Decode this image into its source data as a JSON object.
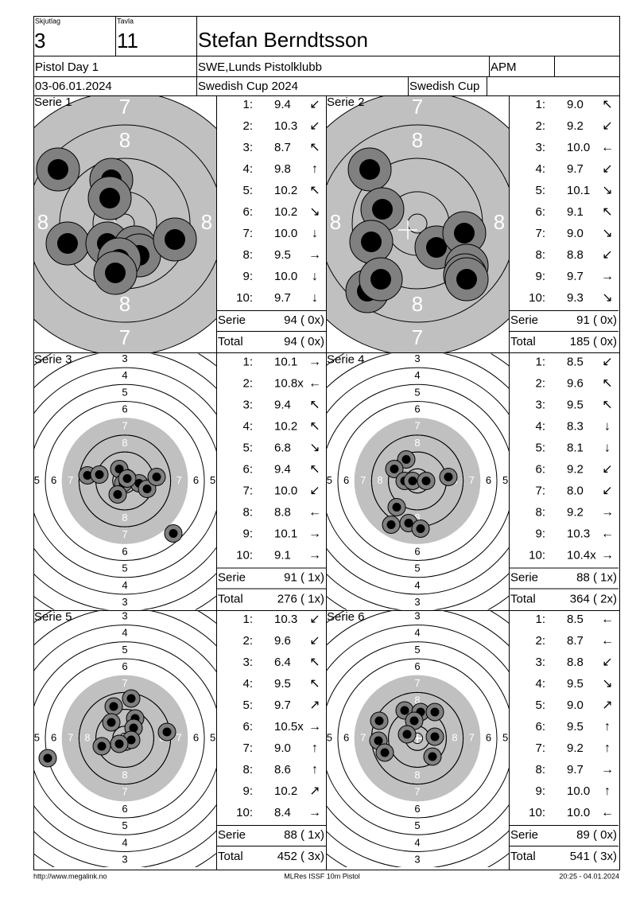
{
  "header": {
    "squad_label": "Skjutlag",
    "squad": "3",
    "lane_label": "Tavla",
    "lane": "11",
    "name": "Stefan Berndtsson",
    "event": "Pistol Day 1",
    "club": "SWE,Lunds Pistolklubb",
    "class": "APM",
    "date": "03-06.01.2024",
    "competition": "Swedish Cup 2024",
    "cup": "Swedish Cup"
  },
  "target": {
    "zoom_ring_labels": [
      7,
      8
    ],
    "ring_labels": [
      3,
      4,
      5,
      6,
      7,
      8
    ],
    "side_ring_labels": [
      5,
      6,
      7,
      8
    ]
  },
  "series": [
    {
      "title": "Serie 1",
      "shots": [
        {
          "n": "1:",
          "score": "9.4",
          "arrow": "↙"
        },
        {
          "n": "2:",
          "score": "10.3",
          "arrow": "↙"
        },
        {
          "n": "3:",
          "score": "8.7",
          "arrow": "↖"
        },
        {
          "n": "4:",
          "score": "9.8",
          "arrow": "↑"
        },
        {
          "n": "5:",
          "score": "10.2",
          "arrow": "↖"
        },
        {
          "n": "6:",
          "score": "10.2",
          "arrow": "↘"
        },
        {
          "n": "7:",
          "score": "10.0",
          "arrow": "↓"
        },
        {
          "n": "8:",
          "score": "9.5",
          "arrow": "→"
        },
        {
          "n": "9:",
          "score": "10.0",
          "arrow": "↓"
        },
        {
          "n": "10:",
          "score": "9.7",
          "arrow": "↓"
        }
      ],
      "serie_label": "Serie",
      "serie": "94 ( 0x)",
      "total_label": "Total",
      "total": "94 ( 0x)"
    },
    {
      "title": "Serie 2",
      "shots": [
        {
          "n": "1:",
          "score": "9.0",
          "arrow": "↖"
        },
        {
          "n": "2:",
          "score": "9.2",
          "arrow": "↙"
        },
        {
          "n": "3:",
          "score": "10.0",
          "arrow": "←"
        },
        {
          "n": "4:",
          "score": "9.7",
          "arrow": "↙"
        },
        {
          "n": "5:",
          "score": "10.1",
          "arrow": "↘"
        },
        {
          "n": "6:",
          "score": "9.1",
          "arrow": "↖"
        },
        {
          "n": "7:",
          "score": "9.0",
          "arrow": "↘"
        },
        {
          "n": "8:",
          "score": "8.8",
          "arrow": "↙"
        },
        {
          "n": "9:",
          "score": "9.7",
          "arrow": "→"
        },
        {
          "n": "10:",
          "score": "9.3",
          "arrow": "↘"
        }
      ],
      "serie_label": "Serie",
      "serie": "91 ( 0x)",
      "total_label": "Total",
      "total": "185 ( 0x)"
    },
    {
      "title": "Serie 3",
      "shots": [
        {
          "n": "1:",
          "score": "10.1",
          "arrow": "→"
        },
        {
          "n": "2:",
          "score": "10.8x",
          "arrow": "←"
        },
        {
          "n": "3:",
          "score": "9.4",
          "arrow": "↖"
        },
        {
          "n": "4:",
          "score": "10.2",
          "arrow": "↖"
        },
        {
          "n": "5:",
          "score": "6.8",
          "arrow": "↘"
        },
        {
          "n": "6:",
          "score": "9.4",
          "arrow": "↖"
        },
        {
          "n": "7:",
          "score": "10.0",
          "arrow": "↙"
        },
        {
          "n": "8:",
          "score": "8.8",
          "arrow": "←"
        },
        {
          "n": "9:",
          "score": "10.1",
          "arrow": "→"
        },
        {
          "n": "10:",
          "score": "9.1",
          "arrow": "→"
        }
      ],
      "serie_label": "Serie",
      "serie": "91 ( 1x)",
      "total_label": "Total",
      "total": "276 ( 1x)"
    },
    {
      "title": "Serie 4",
      "shots": [
        {
          "n": "1:",
          "score": "8.5",
          "arrow": "↙"
        },
        {
          "n": "2:",
          "score": "9.6",
          "arrow": "↖"
        },
        {
          "n": "3:",
          "score": "9.5",
          "arrow": "↖"
        },
        {
          "n": "4:",
          "score": "8.3",
          "arrow": "↓"
        },
        {
          "n": "5:",
          "score": "8.1",
          "arrow": "↓"
        },
        {
          "n": "6:",
          "score": "9.2",
          "arrow": "↙"
        },
        {
          "n": "7:",
          "score": "8.0",
          "arrow": "↙"
        },
        {
          "n": "8:",
          "score": "9.2",
          "arrow": "→"
        },
        {
          "n": "9:",
          "score": "10.3",
          "arrow": "←"
        },
        {
          "n": "10:",
          "score": "10.4x",
          "arrow": "→"
        }
      ],
      "serie_label": "Serie",
      "serie": "88 ( 1x)",
      "total_label": "Total",
      "total": "364 ( 2x)"
    },
    {
      "title": "Serie 5",
      "shots": [
        {
          "n": "1:",
          "score": "10.3",
          "arrow": "↙"
        },
        {
          "n": "2:",
          "score": "9.6",
          "arrow": "↙"
        },
        {
          "n": "3:",
          "score": "6.4",
          "arrow": "↖"
        },
        {
          "n": "4:",
          "score": "9.5",
          "arrow": "↖"
        },
        {
          "n": "5:",
          "score": "9.7",
          "arrow": "↗"
        },
        {
          "n": "6:",
          "score": "10.5x",
          "arrow": "→"
        },
        {
          "n": "7:",
          "score": "9.0",
          "arrow": "↑"
        },
        {
          "n": "8:",
          "score": "8.6",
          "arrow": "↑"
        },
        {
          "n": "9:",
          "score": "10.2",
          "arrow": "↗"
        },
        {
          "n": "10:",
          "score": "8.4",
          "arrow": "→"
        }
      ],
      "serie_label": "Serie",
      "serie": "88 ( 1x)",
      "total_label": "Total",
      "total": "452 ( 3x)"
    },
    {
      "title": "Serie 6",
      "shots": [
        {
          "n": "1:",
          "score": "8.5",
          "arrow": "←"
        },
        {
          "n": "2:",
          "score": "8.7",
          "arrow": "←"
        },
        {
          "n": "3:",
          "score": "8.8",
          "arrow": "↙"
        },
        {
          "n": "4:",
          "score": "9.5",
          "arrow": "↘"
        },
        {
          "n": "5:",
          "score": "9.0",
          "arrow": "↗"
        },
        {
          "n": "6:",
          "score": "9.5",
          "arrow": "↑"
        },
        {
          "n": "7:",
          "score": "9.2",
          "arrow": "↑"
        },
        {
          "n": "8:",
          "score": "9.7",
          "arrow": "→"
        },
        {
          "n": "9:",
          "score": "10.0",
          "arrow": "↑"
        },
        {
          "n": "10:",
          "score": "10.0",
          "arrow": "←"
        }
      ],
      "serie_label": "Serie",
      "serie": "89 ( 0x)",
      "total_label": "Total",
      "total": "541 ( 3x)"
    }
  ],
  "footer": {
    "left": "http://www.megalink.no",
    "center": "MLRes ISSF 10m Pistol",
    "right": "20:25 - 04.01.2024"
  }
}
